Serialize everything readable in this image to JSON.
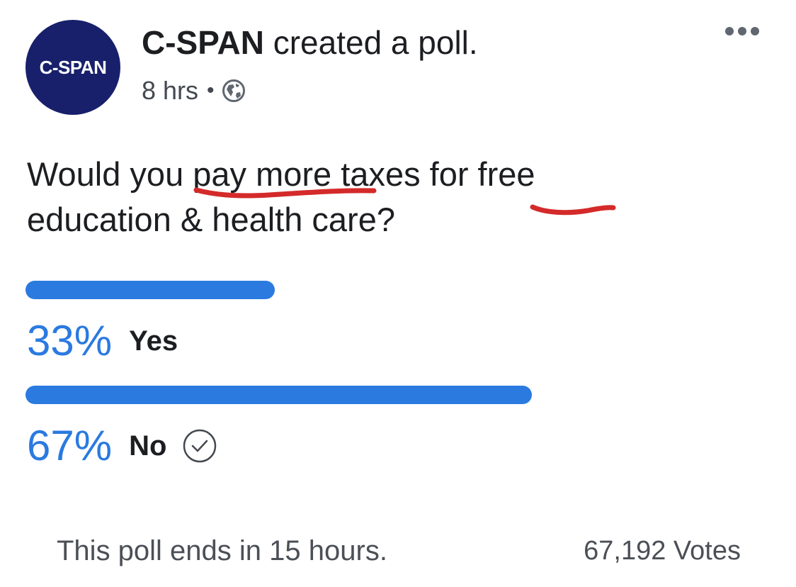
{
  "post": {
    "avatar_text": "C-SPAN",
    "author": "C-SPAN",
    "action": "created a poll.",
    "time": "8 hrs",
    "separator": "•",
    "privacy_icon": "globe-icon",
    "menu_icon": "more-options-icon"
  },
  "poll": {
    "question": "Would you pay more taxes for free education & health care?",
    "options": [
      {
        "percent_label": "33%",
        "label": "Yes",
        "fraction": 0.33,
        "selected": false
      },
      {
        "percent_label": "67%",
        "label": "No",
        "fraction": 0.67,
        "selected": true,
        "selected_icon": "check-circle-icon"
      }
    ],
    "ends_text": "This poll ends in 15 hours.",
    "votes_text": "67,192 Votes"
  },
  "colors": {
    "brand_circle": "#18206b",
    "bar_blue": "#2a7ae0",
    "annotation_red": "#d42a2a",
    "muted_text": "#4b4f56"
  }
}
